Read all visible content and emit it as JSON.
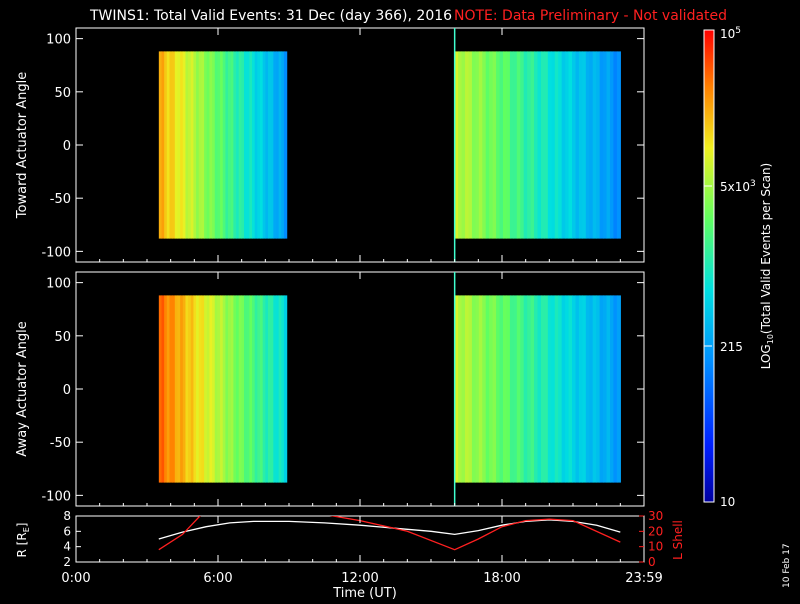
{
  "header": {
    "title": "TWINS1: Total Valid Events: 31 Dec (day 366), 2016",
    "note": "NOTE: Data Preliminary - Not validated"
  },
  "panels": {
    "toward": {
      "ylabel": "Toward Actuator Angle"
    },
    "away": {
      "ylabel": "Away Actuator Angle"
    },
    "ephemeris": {
      "ylabel_left": "R [R",
      "ylabel_left_sub": "E",
      "ylabel_left_end": "]",
      "ylabel_right": "L Shell"
    }
  },
  "xaxis": {
    "label": "Time (UT)",
    "ticks": [
      "0:00",
      "6:00",
      "12:00",
      "18:00",
      "23:59"
    ]
  },
  "colorbar": {
    "label_pre": "LOG",
    "label_sub": "10",
    "label_post": "(Total Valid Events per Scan)",
    "tick_top_base": "10",
    "tick_top_exp": "5",
    "tick_mid_base": "5x10",
    "tick_mid_exp": "3",
    "tick_low": "215",
    "tick_bottom": "10"
  },
  "footer": {
    "date": "10 Feb 17"
  },
  "chart_data": [
    {
      "type": "heatmap",
      "panel": "Toward Actuator Angle",
      "xlabel": "Time (UT)",
      "xlim": [
        0,
        24
      ],
      "ylim": [
        -110,
        110
      ],
      "yticks": [
        -100,
        -50,
        0,
        50,
        100
      ],
      "data_blocks": [
        {
          "time_start": 3.5,
          "time_end": 8.9,
          "angle_range": [
            -88,
            88
          ],
          "level_start": 4.3,
          "level_end": 2.3
        },
        {
          "time_start": 16.0,
          "time_end": 23.0,
          "angle_range": [
            -88,
            88
          ],
          "level_start": 3.8,
          "level_end": 2.2
        }
      ]
    },
    {
      "type": "heatmap",
      "panel": "Away Actuator Angle",
      "xlabel": "Time (UT)",
      "xlim": [
        0,
        24
      ],
      "ylim": [
        -110,
        110
      ],
      "yticks": [
        -100,
        -50,
        0,
        50,
        100
      ],
      "data_blocks": [
        {
          "time_start": 3.5,
          "time_end": 8.9,
          "angle_range": [
            -88,
            88
          ],
          "level_start": 4.6,
          "level_end": 2.8
        },
        {
          "time_start": 16.0,
          "time_end": 23.0,
          "angle_range": [
            -88,
            88
          ],
          "level_start": 3.8,
          "level_end": 2.3
        }
      ]
    },
    {
      "type": "line",
      "panel": "Ephemeris",
      "xlim": [
        0,
        24
      ],
      "ylim_left": [
        2,
        8
      ],
      "yticks_left": [
        2,
        4,
        6,
        8
      ],
      "ylim_right": [
        0,
        30
      ],
      "yticks_right": [
        0,
        10,
        20,
        30
      ],
      "series": [
        {
          "name": "R [RE]",
          "color": "#ffffff",
          "x": [
            3.5,
            4.5,
            5.5,
            6.5,
            7.5,
            9,
            10.5,
            12,
            13.5,
            15,
            16,
            17,
            18,
            19,
            20,
            21,
            22,
            23
          ],
          "y": [
            5.0,
            5.9,
            6.6,
            7.1,
            7.3,
            7.3,
            7.1,
            6.8,
            6.4,
            6.0,
            5.6,
            6.1,
            6.8,
            7.3,
            7.5,
            7.3,
            6.8,
            5.9
          ]
        },
        {
          "name": "L Shell",
          "color": "#ff2020",
          "x": [
            3.5,
            4.5,
            5.3,
            10.5,
            12,
            14,
            16,
            17,
            18,
            19,
            20,
            21,
            23
          ],
          "y": [
            8,
            18,
            31,
            31,
            27,
            20,
            8,
            15,
            23,
            27,
            28,
            27,
            13
          ]
        }
      ]
    }
  ],
  "colors": {
    "background": "#000000",
    "axis": "#ffffff",
    "note": "#ff2020",
    "lshell": "#ff2020"
  }
}
